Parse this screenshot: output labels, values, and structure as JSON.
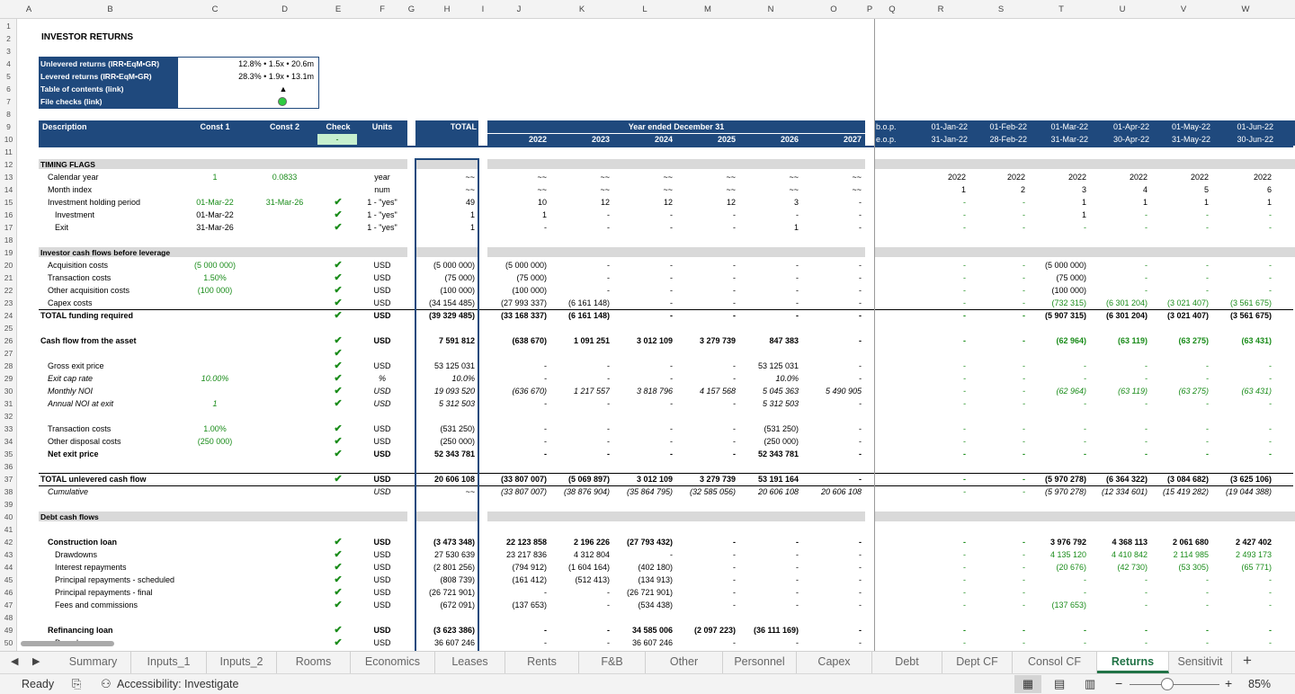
{
  "columns": [
    {
      "id": "A",
      "label": "A"
    },
    {
      "id": "B",
      "label": "B"
    },
    {
      "id": "C",
      "label": "C"
    },
    {
      "id": "D",
      "label": "D"
    },
    {
      "id": "E",
      "label": "E"
    },
    {
      "id": "F",
      "label": "F"
    },
    {
      "id": "G",
      "label": "G"
    },
    {
      "id": "H",
      "label": "H"
    },
    {
      "id": "I",
      "label": "I"
    },
    {
      "id": "J",
      "label": "J"
    },
    {
      "id": "K",
      "label": "K"
    },
    {
      "id": "L",
      "label": "L"
    },
    {
      "id": "M",
      "label": "M"
    },
    {
      "id": "N",
      "label": "N"
    },
    {
      "id": "O",
      "label": "O"
    },
    {
      "id": "P",
      "label": "P"
    },
    {
      "id": "Q",
      "label": "Q"
    },
    {
      "id": "R",
      "label": "R"
    },
    {
      "id": "S",
      "label": "S"
    },
    {
      "id": "T",
      "label": "T"
    },
    {
      "id": "U",
      "label": "U"
    },
    {
      "id": "V",
      "label": "V"
    },
    {
      "id": "W",
      "label": "W"
    }
  ],
  "rows": [
    "1",
    "2",
    "3",
    "4",
    "5",
    "6",
    "7",
    "8",
    "9",
    "10",
    "11",
    "12",
    "13",
    "14",
    "15",
    "16",
    "17",
    "18",
    "19",
    "20",
    "21",
    "22",
    "23",
    "24",
    "25",
    "26",
    "27",
    "28",
    "29",
    "30",
    "31",
    "32",
    "33",
    "34",
    "35",
    "36",
    "37",
    "38",
    "39",
    "40",
    "41",
    "42",
    "43",
    "44",
    "45",
    "46",
    "47",
    "48",
    "49",
    "50"
  ],
  "sheet_title": "INVESTOR RETURNS",
  "summary": [
    {
      "label": "Unlevered returns (IRR•EqM•GR)",
      "value": "12.8% • 1.5x • 20.6m"
    },
    {
      "label": "Levered returns (IRR•EqM•GR)",
      "value": "28.3% • 1.9x • 13.1m"
    },
    {
      "label": "Table of contents (link)",
      "value": "▲"
    },
    {
      "label": "File checks (link)",
      "value": ""
    }
  ],
  "header": {
    "description": "Description",
    "const1": "Const 1",
    "const2": "Const 2",
    "check": "Check",
    "check_value": "-",
    "units": "Units",
    "total": "TOTAL",
    "year_ended": "Year ended December 31",
    "years": [
      "2022",
      "2023",
      "2024",
      "2025",
      "2026",
      "2027"
    ],
    "bop": "b.o.p.",
    "eop": "e.o.p.",
    "month_start": [
      "01-Jan-22",
      "01-Feb-22",
      "01-Mar-22",
      "01-Apr-22",
      "01-May-22",
      "01-Jun-22"
    ],
    "month_end": [
      "31-Jan-22",
      "28-Feb-22",
      "31-Mar-22",
      "30-Apr-22",
      "31-May-22",
      "30-Jun-22"
    ]
  },
  "body": [
    {
      "row": 12,
      "section": "TIMING FLAGS"
    },
    {
      "row": 13,
      "desc": "Calendar year",
      "indent": 1,
      "c1": "1",
      "c2": "0.0833",
      "check": false,
      "units": "year",
      "total": "~~",
      "years": [
        "~~",
        "~~",
        "~~",
        "~~",
        "~~",
        "~~"
      ],
      "months": [
        "2022",
        "2022",
        "2022",
        "2022",
        "2022",
        "2022"
      ]
    },
    {
      "row": 14,
      "desc": "Month index",
      "indent": 1,
      "units": "num",
      "total": "~~",
      "years": [
        "~~",
        "~~",
        "~~",
        "~~",
        "~~",
        "~~"
      ],
      "months": [
        "1",
        "2",
        "3",
        "4",
        "5",
        "6"
      ]
    },
    {
      "row": 15,
      "desc": "Investment holding period",
      "indent": 1,
      "c1": "01-Mar-22",
      "c2": "31-Mar-26",
      "check": true,
      "units": "1 - \"yes\"",
      "total": "49",
      "years": [
        "10",
        "12",
        "12",
        "12",
        "3",
        "-"
      ],
      "months": [
        "-",
        "-",
        "1",
        "1",
        "1",
        "1"
      ]
    },
    {
      "row": 16,
      "desc": "Investment",
      "indent": 2,
      "c1": "01-Mar-22",
      "c1black": true,
      "check": true,
      "units": "1 - \"yes\"",
      "total": "1",
      "years": [
        "1",
        "-",
        "-",
        "-",
        "-",
        "-"
      ],
      "months": [
        "-",
        "-",
        "1",
        "-",
        "-",
        "-"
      ]
    },
    {
      "row": 17,
      "desc": "Exit",
      "indent": 2,
      "c1": "31-Mar-26",
      "c1black": true,
      "check": true,
      "units": "1 - \"yes\"",
      "total": "1",
      "years": [
        "-",
        "-",
        "-",
        "-",
        "1",
        "-"
      ],
      "months": [
        "-",
        "-",
        "-",
        "-",
        "-",
        "-"
      ]
    },
    {
      "row": 19,
      "section": "Investor cash flows before leverage"
    },
    {
      "row": 20,
      "desc": "Acquisition costs",
      "indent": 1,
      "c1": "(5 000 000)",
      "check": true,
      "units": "USD",
      "total": "(5 000 000)",
      "years": [
        "(5 000 000)",
        "-",
        "-",
        "-",
        "-",
        "-"
      ],
      "months": [
        "-",
        "-",
        "(5 000 000)",
        "-",
        "-",
        "-"
      ]
    },
    {
      "row": 21,
      "desc": "Transaction costs",
      "indent": 1,
      "c1": "1.50%",
      "check": true,
      "units": "USD",
      "total": "(75 000)",
      "years": [
        "(75 000)",
        "-",
        "-",
        "-",
        "-",
        "-"
      ],
      "months": [
        "-",
        "-",
        "(75 000)",
        "-",
        "-",
        "-"
      ]
    },
    {
      "row": 22,
      "desc": "Other acquisition costs",
      "indent": 1,
      "c1": "(100 000)",
      "check": true,
      "units": "USD",
      "total": "(100 000)",
      "years": [
        "(100 000)",
        "-",
        "-",
        "-",
        "-",
        "-"
      ],
      "months": [
        "-",
        "-",
        "(100 000)",
        "-",
        "-",
        "-"
      ]
    },
    {
      "row": 23,
      "desc": "Capex costs",
      "indent": 1,
      "check": true,
      "units": "USD",
      "total": "(34 154 485)",
      "years": [
        "(27 993 337)",
        "(6 161 148)",
        "-",
        "-",
        "-",
        "-"
      ],
      "months": [
        "-",
        "-",
        "(732 315)",
        "(6 301 204)",
        "(3 021 407)",
        "(3 561 675)"
      ],
      "mgreen": true
    },
    {
      "row": 24,
      "desc": "TOTAL funding required",
      "bold": true,
      "check": true,
      "units": "USD",
      "total": "(39 329 485)",
      "years": [
        "(33 168 337)",
        "(6 161 148)",
        "-",
        "-",
        "-",
        "-"
      ],
      "months": [
        "-",
        "-",
        "(5 907 315)",
        "(6 301 204)",
        "(3 021 407)",
        "(3 561 675)"
      ]
    },
    {
      "row": 26,
      "desc": "Cash flow from the asset",
      "bold": true,
      "check": true,
      "units": "USD",
      "total": "7 591 812",
      "years": [
        "(638 670)",
        "1 091 251",
        "3 012 109",
        "3 279 739",
        "847 383",
        "-"
      ],
      "months": [
        "-",
        "-",
        "(62 964)",
        "(63 119)",
        "(63 275)",
        "(63 431)"
      ],
      "mgreen": true
    },
    {
      "row": 27,
      "check": true
    },
    {
      "row": 28,
      "desc": "Gross exit price",
      "indent": 1,
      "check": true,
      "units": "USD",
      "total": "53 125 031",
      "years": [
        "-",
        "-",
        "-",
        "-",
        "53 125 031",
        "-"
      ],
      "months": [
        "-",
        "-",
        "-",
        "-",
        "-",
        "-"
      ]
    },
    {
      "row": 29,
      "desc": "Exit cap rate",
      "indent": 1,
      "italic": true,
      "c1": "10.00%",
      "check": true,
      "units": "%",
      "total": "10.0%",
      "years": [
        "-",
        "-",
        "-",
        "-",
        "10.0%",
        "-"
      ],
      "months": [
        "-",
        "-",
        "-",
        "-",
        "-",
        "-"
      ]
    },
    {
      "row": 30,
      "desc": "Monthly NOI",
      "indent": 1,
      "italic": true,
      "check": true,
      "units": "USD",
      "total": "19 093 520",
      "years": [
        "(636 670)",
        "1 217 557",
        "3 818 796",
        "4 157 568",
        "5 045 363",
        "5 490 905"
      ],
      "months": [
        "-",
        "-",
        "(62 964)",
        "(63 119)",
        "(63 275)",
        "(63 431)"
      ],
      "mgreen": true
    },
    {
      "row": 31,
      "desc": "Annual NOI at exit",
      "indent": 1,
      "italic": true,
      "c1": "1",
      "check": true,
      "units": "USD",
      "total": "5 312 503",
      "years": [
        "-",
        "-",
        "-",
        "-",
        "5 312 503",
        "-"
      ],
      "months": [
        "-",
        "-",
        "-",
        "-",
        "-",
        "-"
      ]
    },
    {
      "row": 33,
      "desc": "Transaction costs",
      "indent": 1,
      "c1": "1.00%",
      "check": true,
      "units": "USD",
      "total": "(531 250)",
      "years": [
        "-",
        "-",
        "-",
        "-",
        "(531 250)",
        "-"
      ],
      "months": [
        "-",
        "-",
        "-",
        "-",
        "-",
        "-"
      ]
    },
    {
      "row": 34,
      "desc": "Other disposal costs",
      "indent": 1,
      "c1": "(250 000)",
      "check": true,
      "units": "USD",
      "total": "(250 000)",
      "years": [
        "-",
        "-",
        "-",
        "-",
        "(250 000)",
        "-"
      ],
      "months": [
        "-",
        "-",
        "-",
        "-",
        "-",
        "-"
      ]
    },
    {
      "row": 35,
      "desc": "Net exit price",
      "indent": 1,
      "bold": true,
      "check": true,
      "units": "USD",
      "total": "52 343 781",
      "years": [
        "-",
        "-",
        "-",
        "-",
        "52 343 781",
        "-"
      ],
      "months": [
        "-",
        "-",
        "-",
        "-",
        "-",
        "-"
      ]
    },
    {
      "row": 37,
      "desc": "TOTAL unlevered cash flow",
      "bold": true,
      "check": true,
      "units": "USD",
      "total": "20 606 108",
      "years": [
        "(33 807 007)",
        "(5 069 897)",
        "3 012 109",
        "3 279 739",
        "53 191 164",
        "-"
      ],
      "months": [
        "-",
        "-",
        "(5 970 278)",
        "(6 364 322)",
        "(3 084 682)",
        "(3 625 106)"
      ]
    },
    {
      "row": 38,
      "desc": "Cumulative",
      "indent": 1,
      "italic": true,
      "units": "USD",
      "total": "~~",
      "years": [
        "(33 807 007)",
        "(38 876 904)",
        "(35 864 795)",
        "(32 585 056)",
        "20 606 108",
        "20 606 108"
      ],
      "months": [
        "-",
        "-",
        "(5 970 278)",
        "(12 334 601)",
        "(15 419 282)",
        "(19 044 388)"
      ]
    },
    {
      "row": 40,
      "section": "Debt cash flows"
    },
    {
      "row": 42,
      "desc": "Construction loan",
      "indent": 1,
      "bold": true,
      "check": true,
      "units": "USD",
      "total": "(3 473 348)",
      "years": [
        "22 123 858",
        "2 196 226",
        "(27 793 432)",
        "-",
        "-",
        "-"
      ],
      "months": [
        "-",
        "-",
        "3 976 792",
        "4 368 113",
        "2 061 680",
        "2 427 402"
      ]
    },
    {
      "row": 43,
      "desc": "Drawdowns",
      "indent": 2,
      "check": true,
      "units": "USD",
      "total": "27 530 639",
      "years": [
        "23 217 836",
        "4 312 804",
        "-",
        "-",
        "-",
        "-"
      ],
      "months": [
        "-",
        "-",
        "4 135 120",
        "4 410 842",
        "2 114 985",
        "2 493 173"
      ],
      "mgreen": true
    },
    {
      "row": 44,
      "desc": "Interest repayments",
      "indent": 2,
      "check": true,
      "units": "USD",
      "total": "(2 801 256)",
      "years": [
        "(794 912)",
        "(1 604 164)",
        "(402 180)",
        "-",
        "-",
        "-"
      ],
      "months": [
        "-",
        "-",
        "(20 676)",
        "(42 730)",
        "(53 305)",
        "(65 771)"
      ],
      "mgreen": true
    },
    {
      "row": 45,
      "desc": "Principal repayments - scheduled",
      "indent": 2,
      "check": true,
      "units": "USD",
      "total": "(808 739)",
      "years": [
        "(161 412)",
        "(512 413)",
        "(134 913)",
        "-",
        "-",
        "-"
      ],
      "months": [
        "-",
        "-",
        "-",
        "-",
        "-",
        "-"
      ],
      "mgreen": true
    },
    {
      "row": 46,
      "desc": "Principal repayments - final",
      "indent": 2,
      "check": true,
      "units": "USD",
      "total": "(26 721 901)",
      "years": [
        "-",
        "-",
        "(26 721 901)",
        "-",
        "-",
        "-"
      ],
      "months": [
        "-",
        "-",
        "-",
        "-",
        "-",
        "-"
      ],
      "mgreen": true
    },
    {
      "row": 47,
      "desc": "Fees and commissions",
      "indent": 2,
      "check": true,
      "units": "USD",
      "total": "(672 091)",
      "years": [
        "(137 653)",
        "-",
        "(534 438)",
        "-",
        "-",
        "-"
      ],
      "months": [
        "-",
        "-",
        "(137 653)",
        "-",
        "-",
        "-"
      ],
      "mgreen": true
    },
    {
      "row": 49,
      "desc": "Refinancing loan",
      "indent": 1,
      "bold": true,
      "check": true,
      "units": "USD",
      "total": "(3 623 386)",
      "years": [
        "-",
        "-",
        "34 585 006",
        "(2 097 223)",
        "(36 111 169)",
        "-"
      ],
      "months": [
        "-",
        "-",
        "-",
        "-",
        "-",
        "-"
      ]
    },
    {
      "row": 50,
      "desc": "Drawdowns",
      "indent": 2,
      "check": true,
      "units": "USD",
      "total": "36 607 246",
      "years": [
        "-",
        "-",
        "36 607 246",
        "-",
        "-",
        "-"
      ],
      "months": [
        "-",
        "-",
        "-",
        "-",
        "-",
        "-"
      ],
      "mgreen": true
    }
  ],
  "tabs": [
    "Summary",
    "Inputs_1",
    "Inputs_2",
    "Rooms",
    "Economics",
    "Leases",
    "Rents",
    "F&B",
    "Other",
    "Personnel",
    "Capex",
    "Debt",
    "Dept CF",
    "Consol CF",
    "Returns",
    "Sensitivit"
  ],
  "active_tab": "Returns",
  "status": {
    "ready": "Ready",
    "accessibility": "Accessibility: Investigate",
    "zoom": "85%"
  },
  "colors": {
    "header_blue": "#1f497d",
    "input_green": "#1a8c1a",
    "active_tab": "#217346"
  }
}
